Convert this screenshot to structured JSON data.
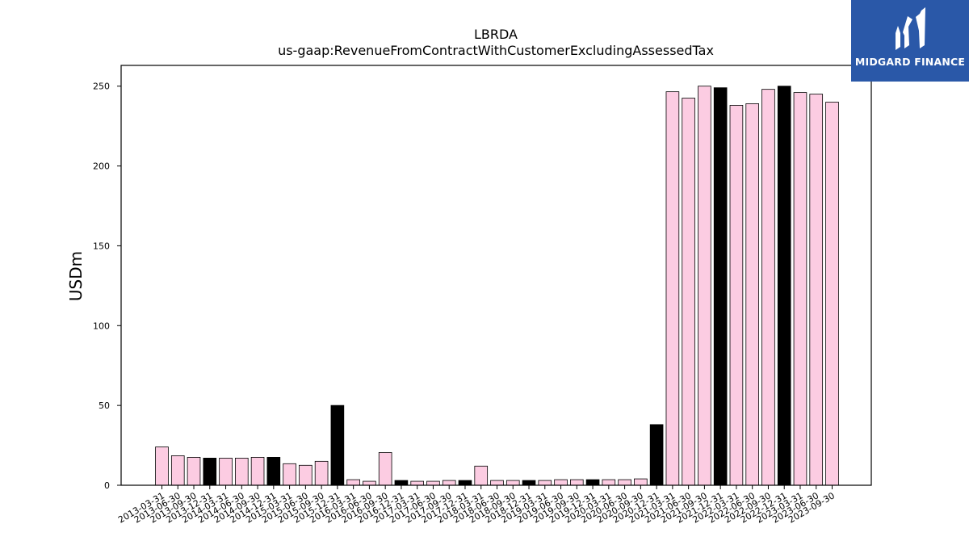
{
  "brand": {
    "name": "MIDGARD FINANCE",
    "background_color": "#2a58a8",
    "icon": "midgard-m-logo-icon"
  },
  "colors": {
    "bar_fill": "#fccce2",
    "bar_highlight": "#000000",
    "bar_stroke": "#000000"
  },
  "chart_data": {
    "type": "bar",
    "title": "LBRDA",
    "subtitle": "us-gaap:RevenueFromContractWithCustomerExcludingAssessedTax",
    "xlabel": "",
    "ylabel": "USDm",
    "ylim": [
      0,
      263
    ],
    "yticks": [
      0,
      50,
      100,
      150,
      200,
      250
    ],
    "grid": false,
    "categories": [
      "2013-03-31",
      "2013-06-30",
      "2013-09-30",
      "2013-12-31",
      "2014-03-31",
      "2014-06-30",
      "2014-09-30",
      "2014-12-31",
      "2015-03-31",
      "2015-06-30",
      "2015-09-30",
      "2015-12-31",
      "2016-03-31",
      "2016-06-30",
      "2016-09-30",
      "2016-12-31",
      "2017-03-31",
      "2017-06-30",
      "2017-09-30",
      "2017-12-31",
      "2018-03-31",
      "2018-06-30",
      "2018-09-30",
      "2018-12-31",
      "2019-03-31",
      "2019-06-30",
      "2019-09-30",
      "2019-12-31",
      "2020-03-31",
      "2020-06-30",
      "2020-09-30",
      "2020-12-31",
      "2021-03-31",
      "2021-06-30",
      "2021-09-30",
      "2021-12-31",
      "2022-03-31",
      "2022-06-30",
      "2022-09-30",
      "2022-12-31",
      "2023-03-31",
      "2023-06-30",
      "2023-09-30"
    ],
    "values": [
      24,
      18.5,
      17.5,
      17,
      17,
      17,
      17.5,
      17.5,
      13.5,
      12.5,
      15,
      50,
      3.5,
      2.5,
      20.5,
      3,
      2.5,
      2.5,
      3,
      3,
      12,
      3,
      3,
      3,
      3,
      3.5,
      3.5,
      3.5,
      3.5,
      3.5,
      4,
      38,
      246.5,
      242.5,
      250,
      249,
      238,
      239,
      248,
      250,
      246,
      245,
      240
    ],
    "highlighted": [
      false,
      false,
      false,
      true,
      false,
      false,
      false,
      true,
      false,
      false,
      false,
      true,
      false,
      false,
      false,
      true,
      false,
      false,
      false,
      true,
      false,
      false,
      false,
      true,
      false,
      false,
      false,
      true,
      false,
      false,
      false,
      true,
      false,
      false,
      false,
      true,
      false,
      false,
      false,
      true,
      false,
      false,
      false
    ]
  }
}
